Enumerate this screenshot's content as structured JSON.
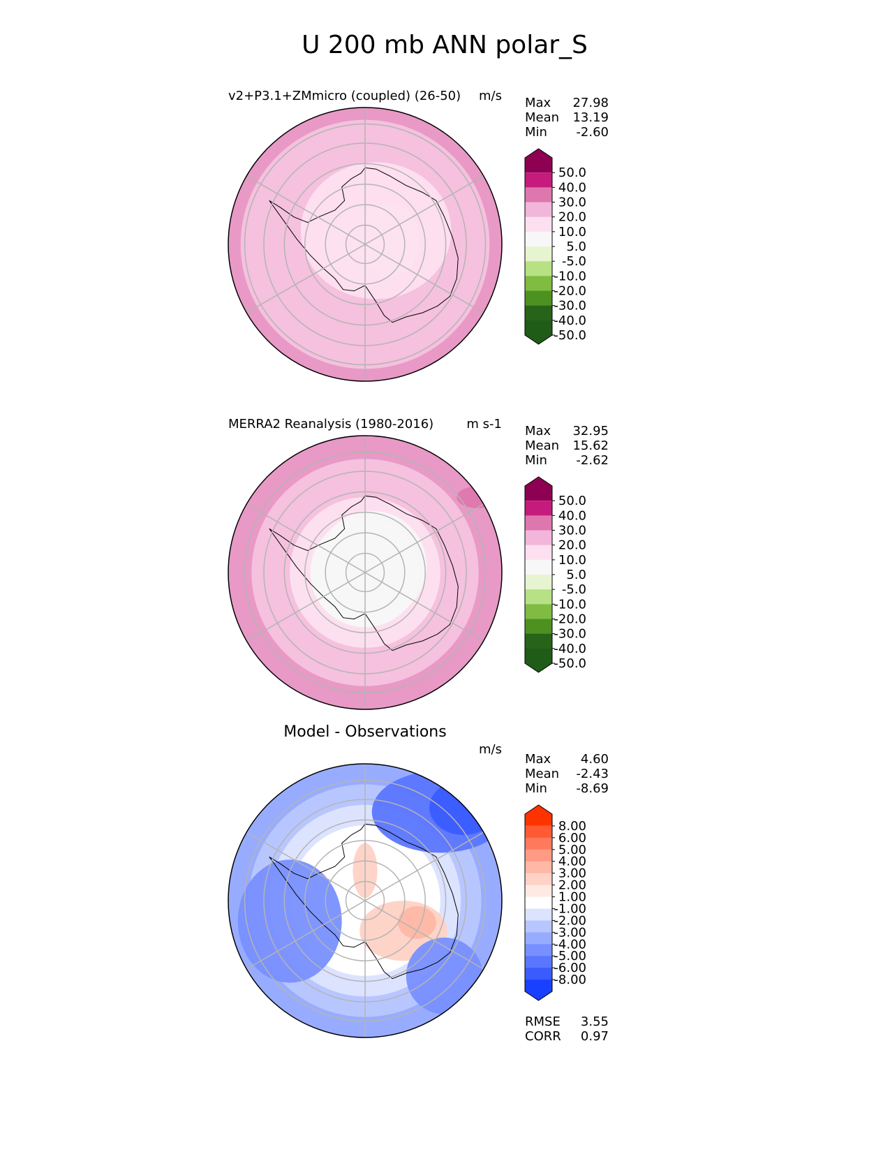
{
  "title": "U 200 mb ANN polar_S",
  "chart_data": [
    {
      "type": "heatmap",
      "projection": "south polar stereographic",
      "panel": "test",
      "title": "v2+P3.1+ZMmicro (coupled) (26-50)",
      "units": "m/s",
      "stats": [
        {
          "label": "Max",
          "value": "27.98"
        },
        {
          "label": "Mean",
          "value": "13.19"
        },
        {
          "label": "Min",
          "value": "-2.60"
        }
      ],
      "colorbar": {
        "tick_labels": [
          "50.0",
          "40.0",
          "30.0",
          "20.0",
          "10.0",
          "5.0",
          "-5.0",
          "-10.0",
          "-20.0",
          "-30.0",
          "-40.0",
          "-50.0"
        ],
        "colors": [
          "#8e0152",
          "#c51b7d",
          "#de77ae",
          "#f1b6da",
          "#fde0ef",
          "#f7f7f7",
          "#e6f5d0",
          "#b8e186",
          "#7fbc41",
          "#4d9221",
          "#276419",
          "#1f5c18"
        ],
        "extend": "both"
      },
      "rings": [
        {
          "fraction": 0.09,
          "color": "#f7f7f7"
        },
        {
          "fraction": 0.31,
          "color": "#fde0ef"
        },
        {
          "fraction": 0.68,
          "color": "#f5c1de"
        },
        {
          "fraction": 0.91,
          "color": "#f5c1de"
        },
        {
          "fraction": 1.0,
          "color": "#e899c6"
        }
      ],
      "features": [
        {
          "color": "#f7f7f7",
          "cx": 0.18,
          "cy": -0.03,
          "r": 0.22,
          "ry": 0.27
        },
        {
          "color": "#fde0ef",
          "cx": 0.08,
          "cy": -0.1,
          "r": 0.55,
          "ry": 0.5
        }
      ]
    },
    {
      "type": "heatmap",
      "projection": "south polar stereographic",
      "panel": "reference",
      "title": "MERRA2 Reanalysis (1980-2016)",
      "units": "m s-1",
      "stats": [
        {
          "label": "Max",
          "value": "32.95"
        },
        {
          "label": "Mean",
          "value": "15.62"
        },
        {
          "label": "Min",
          "value": "-2.62"
        }
      ],
      "colorbar": {
        "tick_labels": [
          "50.0",
          "40.0",
          "30.0",
          "20.0",
          "10.0",
          "5.0",
          "-5.0",
          "-10.0",
          "-20.0",
          "-30.0",
          "-40.0",
          "-50.0"
        ],
        "colors": [
          "#8e0152",
          "#c51b7d",
          "#de77ae",
          "#f1b6da",
          "#fde0ef",
          "#f7f7f7",
          "#e6f5d0",
          "#b8e186",
          "#7fbc41",
          "#4d9221",
          "#276419",
          "#1f5c18"
        ],
        "extend": "both"
      },
      "rings": [
        {
          "fraction": 0.4,
          "color": "#f7f7f7"
        },
        {
          "fraction": 0.55,
          "color": "#fde0ef"
        },
        {
          "fraction": 0.83,
          "color": "#f5c1de"
        },
        {
          "fraction": 1.0,
          "color": "#e899c6"
        }
      ],
      "features": [
        {
          "color": "#f7f7f7",
          "cx": 0.05,
          "cy": -0.05,
          "r": 0.4,
          "ry": 0.4
        },
        {
          "color": "#de77ae",
          "cx": 0.82,
          "cy": -0.55,
          "r": 0.15,
          "ry": 0.08
        }
      ]
    },
    {
      "type": "heatmap",
      "projection": "south polar stereographic",
      "panel": "difference",
      "title": "Model - Observations",
      "units": "m/s",
      "stats": [
        {
          "label": "Max",
          "value": "4.60"
        },
        {
          "label": "Mean",
          "value": "-2.43"
        },
        {
          "label": "Min",
          "value": "-8.69"
        }
      ],
      "colorbar": {
        "tick_labels": [
          "8.00",
          "6.00",
          "5.00",
          "4.00",
          "3.00",
          "2.00",
          "1.00",
          "-1.00",
          "-2.00",
          "-3.00",
          "-4.00",
          "-5.00",
          "-6.00",
          "-8.00"
        ],
        "colors": [
          "#ff3300",
          "#ff5a33",
          "#ff7a5c",
          "#ff9b84",
          "#ffb8a5",
          "#ffd2c5",
          "#ffeae3",
          "#ffffff",
          "#dce3ff",
          "#b8c6ff",
          "#98acff",
          "#7890ff",
          "#5a76ff",
          "#3a5cff",
          "#1a40ff"
        ],
        "extend": "both"
      },
      "rings": [
        {
          "fraction": 0.55,
          "color": "#ffffff"
        },
        {
          "fraction": 0.7,
          "color": "#dce3ff"
        },
        {
          "fraction": 0.85,
          "color": "#b8c6ff"
        },
        {
          "fraction": 1.0,
          "color": "#98acff"
        }
      ],
      "features": [
        {
          "color": "#ffd2c5",
          "cx": 0.28,
          "cy": 0.22,
          "r": 0.32,
          "ry": 0.22
        },
        {
          "color": "#ffb8a5",
          "cx": 0.38,
          "cy": 0.16,
          "r": 0.14,
          "ry": 0.12
        },
        {
          "color": "#ffd2c5",
          "cx": 0.0,
          "cy": -0.22,
          "r": 0.09,
          "ry": 0.2
        },
        {
          "color": "#7890ff",
          "cx": -0.55,
          "cy": 0.15,
          "r": 0.38,
          "ry": 0.45
        },
        {
          "color": "#5a76ff",
          "cx": 0.55,
          "cy": -0.65,
          "r": 0.5,
          "ry": 0.3
        },
        {
          "color": "#3a5cff",
          "cx": 0.72,
          "cy": -0.68,
          "r": 0.25,
          "ry": 0.2
        },
        {
          "color": "#7890ff",
          "cx": 0.58,
          "cy": 0.55,
          "r": 0.28,
          "ry": 0.28
        }
      ],
      "footer_stats": [
        {
          "label": "RMSE",
          "value": "3.55"
        },
        {
          "label": "CORR",
          "value": "0.97"
        }
      ]
    }
  ]
}
